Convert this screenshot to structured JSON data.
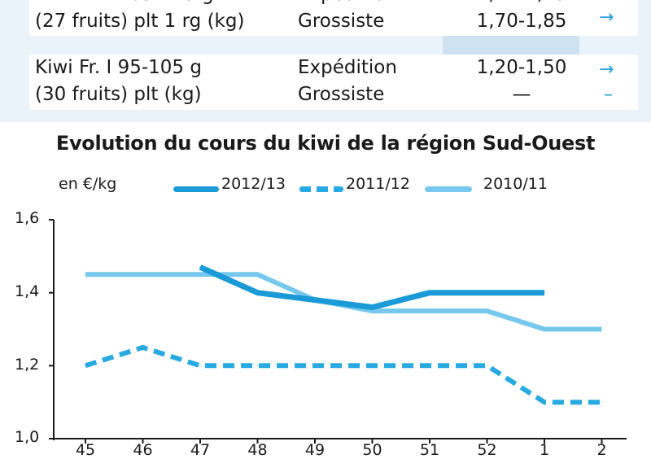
{
  "price_table": {
    "rows": [
      {
        "product_lines": [
          "Kiwi Fr. I 105-115 g",
          "(27 fruits) plt 1 rg (kg)"
        ],
        "stage_lines": [
          "Expédition",
          "Grossiste"
        ],
        "price_lines": [
          "1,71-1,75",
          "1,70-1,85"
        ],
        "trend_lines": [
          "→",
          "→"
        ]
      },
      {
        "product_lines": [
          "Kiwi Fr. I 95-105 g",
          "(30 fruits) plt (kg)"
        ],
        "stage_lines": [
          "Expédition",
          "Grossiste"
        ],
        "price_lines": [
          "1,20-1,50",
          "—"
        ],
        "trend_lines": [
          "→",
          "–"
        ]
      }
    ]
  },
  "chart": {
    "title": "Evolution du cours du kiwi de la région Sud-Ouest",
    "ylabel": "en €/kg",
    "legend": [
      {
        "label": "2012/13",
        "style": "solid",
        "color": "#1a9ad6"
      },
      {
        "label": "2011/12",
        "style": "dashed",
        "color": "#27a9e1"
      },
      {
        "label": "2010/11",
        "style": "solid",
        "color": "#76c8ec"
      }
    ],
    "yticks": [
      "1,6",
      "1,4",
      "1,2",
      "1,0"
    ],
    "xticks": [
      "45",
      "46",
      "47",
      "48",
      "49",
      "50",
      "51",
      "52",
      "1",
      "2"
    ]
  },
  "chart_data": {
    "type": "line",
    "title": "Evolution du cours du kiwi de la région Sud-Ouest",
    "xlabel": "",
    "ylabel": "en €/kg",
    "x": [
      "45",
      "46",
      "47",
      "48",
      "49",
      "50",
      "51",
      "52",
      "1",
      "2"
    ],
    "ylim": [
      1.0,
      1.6
    ],
    "grid": false,
    "legend_position": "top",
    "series": [
      {
        "name": "2012/13",
        "values": [
          null,
          null,
          1.47,
          1.4,
          1.38,
          1.36,
          1.4,
          1.4,
          1.4,
          null
        ],
        "color": "#1a9ad6",
        "style": "solid"
      },
      {
        "name": "2011/12",
        "values": [
          1.2,
          1.25,
          1.2,
          1.2,
          1.2,
          1.2,
          1.2,
          1.2,
          1.1,
          1.1
        ],
        "color": "#27a9e1",
        "style": "dashed"
      },
      {
        "name": "2010/11",
        "values": [
          1.45,
          1.45,
          1.45,
          1.45,
          1.38,
          1.35,
          1.35,
          1.35,
          1.3,
          1.3
        ],
        "color": "#76c8ec",
        "style": "solid"
      }
    ]
  }
}
